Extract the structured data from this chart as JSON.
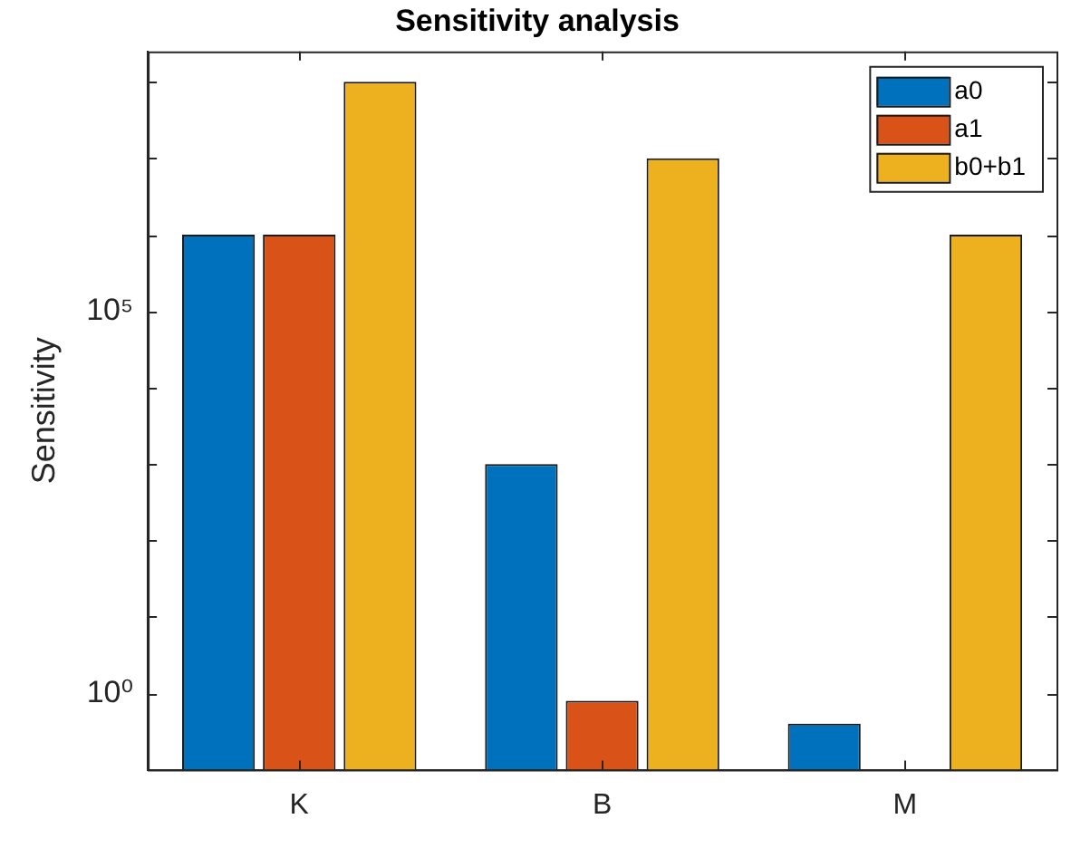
{
  "chart_data": {
    "type": "bar",
    "title": "Sensitivity analysis",
    "ylabel": "Sensitivity",
    "categories": [
      "K",
      "B",
      "M"
    ],
    "series": [
      {
        "name": "a0",
        "color": "#0072bd",
        "values": [
          1000000,
          1000,
          0.4
        ]
      },
      {
        "name": "a1",
        "color": "#d95319",
        "values": [
          1000000,
          0.8,
          null
        ]
      },
      {
        "name": "b0+b1",
        "color": "#edb120",
        "values": [
          100000000,
          10000000,
          1000000
        ]
      }
    ],
    "log": "y",
    "ylim": [
      0.1,
      250000000
    ],
    "yticks": [
      {
        "value": 1,
        "label": "10⁰"
      },
      {
        "value": 10,
        "label": null
      },
      {
        "value": 100,
        "label": null
      },
      {
        "value": 1000,
        "label": null
      },
      {
        "value": 10000,
        "label": null
      },
      {
        "value": 100000,
        "label": "10⁵"
      },
      {
        "value": 1000000,
        "label": null
      },
      {
        "value": 10000000,
        "label": null
      },
      {
        "value": 100000000,
        "label": null
      }
    ],
    "grid": false,
    "legend": "top right"
  }
}
